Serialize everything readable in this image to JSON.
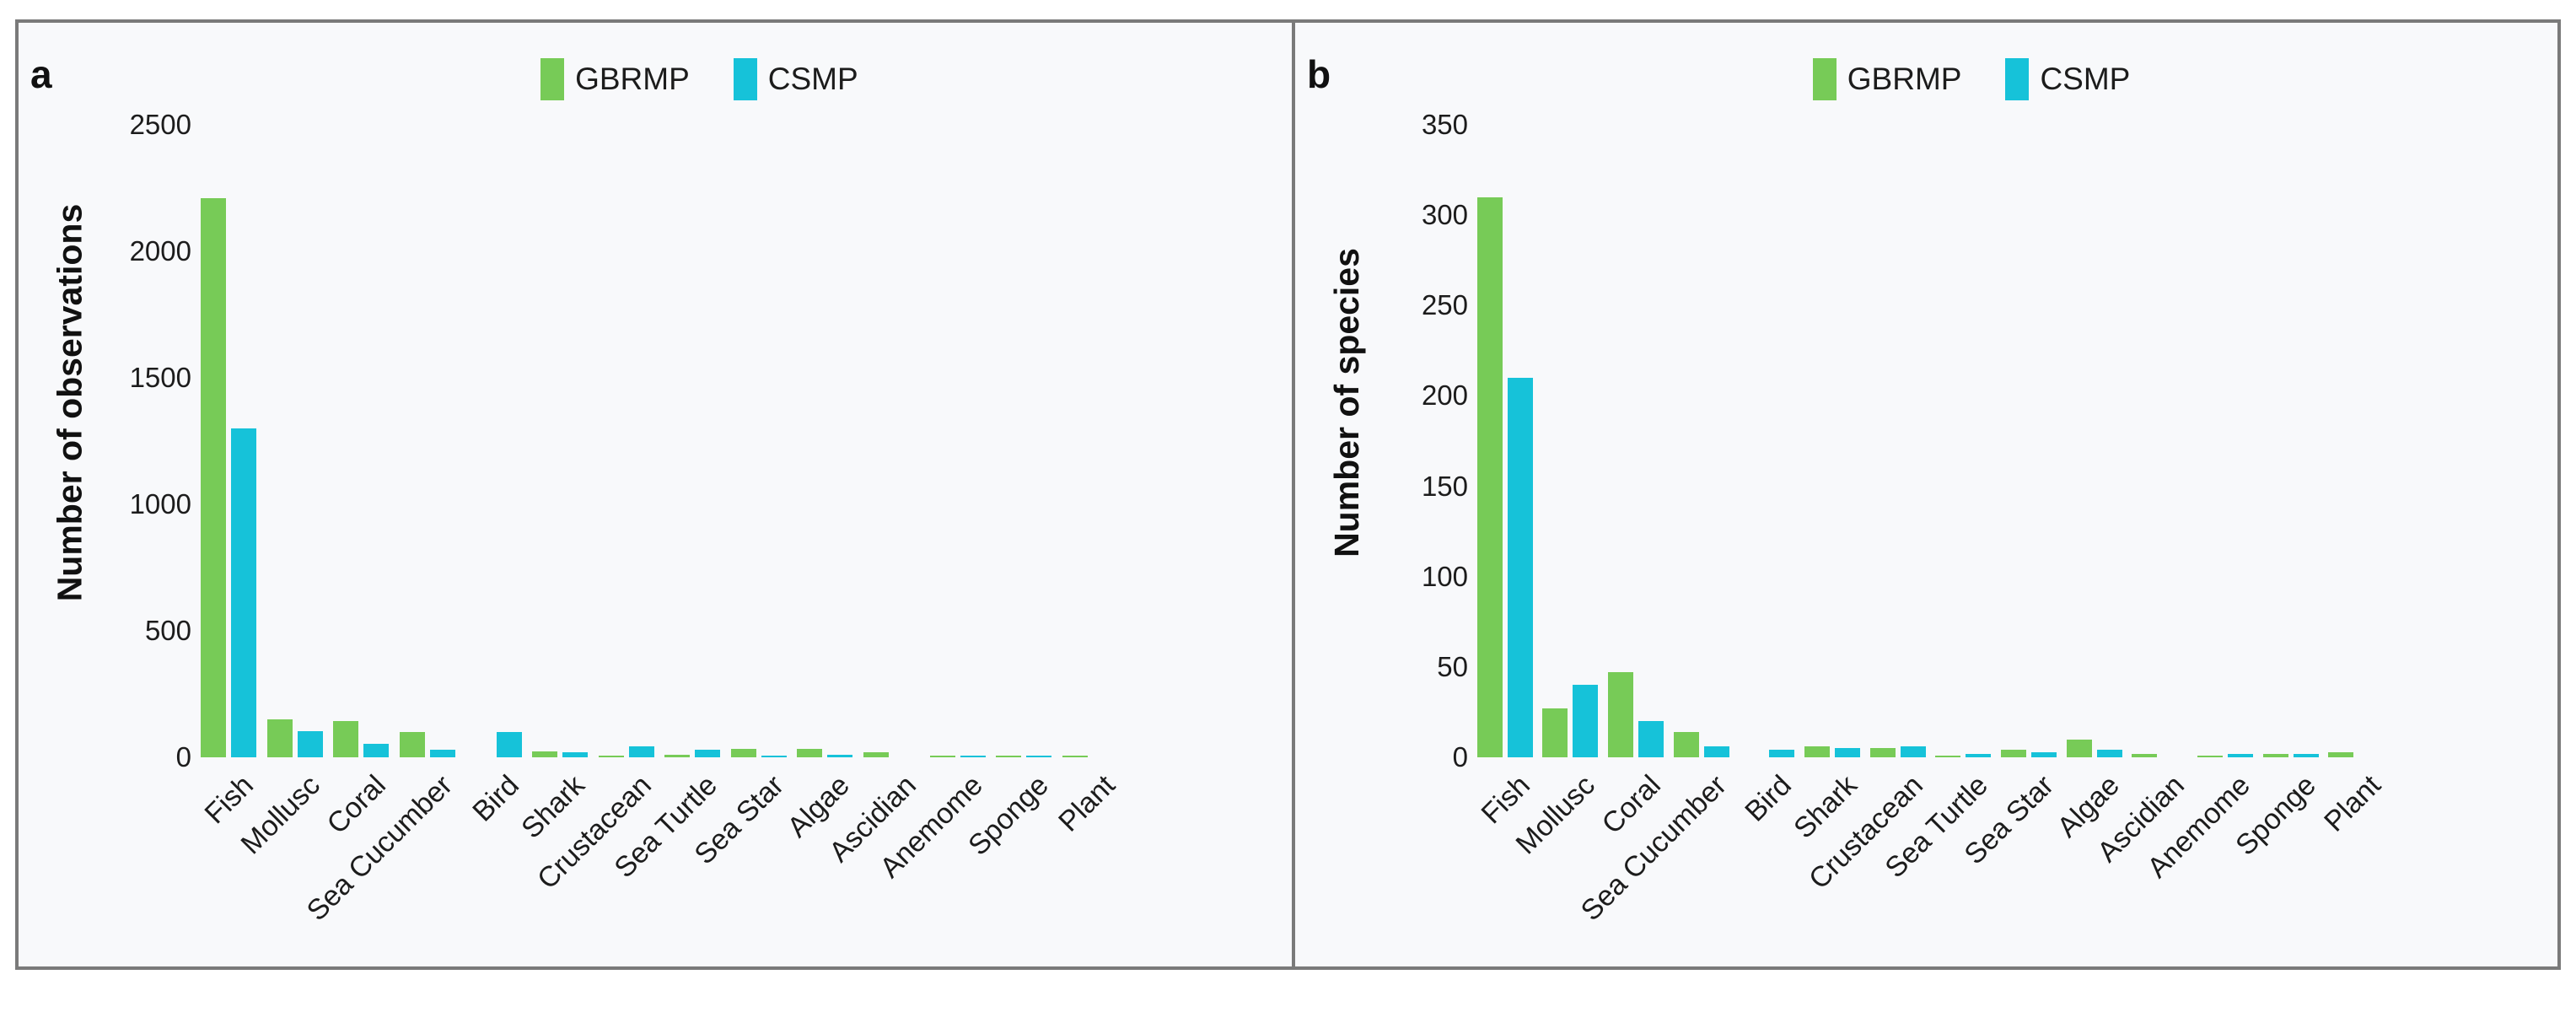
{
  "figure": {
    "background_color": "#f8f9fb",
    "border_color": "#7a7a7a",
    "legend": {
      "items": [
        {
          "label": "GBRMP",
          "color": "#77cb57"
        },
        {
          "label": "CSMP",
          "color": "#16c2d9"
        }
      ]
    }
  },
  "chart_data": [
    {
      "type": "bar",
      "panel_label": "a",
      "title": "",
      "xlabel": "",
      "ylabel": "Number of observations",
      "ylim": [
        0,
        2500
      ],
      "yticks": [
        0,
        500,
        1000,
        1500,
        2000,
        2500
      ],
      "grid": false,
      "legend_position": "top-center",
      "categories": [
        "Fish",
        "Mollusc",
        "Coral",
        "Sea Cucumber",
        "Bird",
        "Shark",
        "Crustacean",
        "Sea Turtle",
        "Sea Star",
        "Algae",
        "Ascidian",
        "Anemome",
        "Sponge",
        "Plant"
      ],
      "series": [
        {
          "name": "GBRMP",
          "color": "#77cb57",
          "values": [
            2210,
            150,
            145,
            100,
            0,
            25,
            8,
            10,
            35,
            33,
            20,
            3,
            5,
            5
          ]
        },
        {
          "name": "CSMP",
          "color": "#16c2d9",
          "values": [
            1300,
            105,
            55,
            30,
            100,
            20,
            45,
            30,
            6,
            10,
            0,
            2,
            3,
            0
          ]
        }
      ]
    },
    {
      "type": "bar",
      "panel_label": "b",
      "title": "",
      "xlabel": "",
      "ylabel": "Number of species",
      "ylim": [
        0,
        350
      ],
      "yticks": [
        0,
        50,
        100,
        150,
        200,
        250,
        300,
        350
      ],
      "grid": false,
      "legend_position": "top-center",
      "categories": [
        "Fish",
        "Mollusc",
        "Coral",
        "Sea Cucumber",
        "Bird",
        "Shark",
        "Crustacean",
        "Sea Turtle",
        "Sea Star",
        "Algae",
        "Ascidian",
        "Anemome",
        "Sponge",
        "Plant"
      ],
      "series": [
        {
          "name": "GBRMP",
          "color": "#77cb57",
          "values": [
            310,
            27,
            47,
            14,
            0,
            6,
            5,
            1,
            4,
            10,
            2,
            1,
            2,
            3
          ]
        },
        {
          "name": "CSMP",
          "color": "#16c2d9",
          "values": [
            210,
            40,
            20,
            6,
            4,
            5,
            6,
            2,
            3,
            4,
            0,
            2,
            2,
            0
          ]
        }
      ]
    }
  ]
}
